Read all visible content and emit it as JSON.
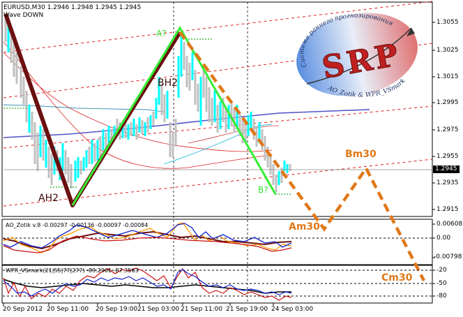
{
  "window": {
    "symbol_line": "EURUSD,M30  1.2946 1.2948 1.2945 1.2945",
    "indicator_name": "Wave DOWN"
  },
  "main_axis": {
    "ticks": [
      "1.3055",
      "1.3025",
      "1.3015",
      "1.2995",
      "1.2975",
      "1.2955",
      "1.2935",
      "1.2915"
    ],
    "current_price": "1.2945"
  },
  "wave_labels": {
    "ah2": "AH2",
    "bh2": "BH2",
    "a_q": "A?",
    "b_q": "B?",
    "am30": "Am30",
    "bm30": "Bm30",
    "cm30": "Cm30"
  },
  "logo": {
    "letters": "SRP",
    "ring_top_text": "Система раннего прогнозирования",
    "ring_bottom_text": "AO_Zotik & WPR_VSmark"
  },
  "ao_panel": {
    "title": "AO_Zotik v.8  -0.00297  -0.00136  -0.00097  -0.00084",
    "ticks": [
      "0.00608",
      "0.00",
      "-0.00798"
    ]
  },
  "wpr_panel": {
    "title": "WPR_VSmark(21|55|77|277)  -89.2961  -87.3563",
    "ticks": [
      "-20",
      "-50",
      "-80"
    ]
  },
  "time_axis": {
    "labels": [
      "20 Sep 2012",
      "20 Sep 11:00",
      "20 Sep 19:00",
      "21 Sep 03:00",
      "21 Sep 11:00",
      "21 Sep 19:00",
      "24 Sep 03:00"
    ]
  },
  "colors": {
    "bull_bar": "#00ffff",
    "bear_bar": "#c0c0c0",
    "wave_dark": "#6b1010",
    "wave_green": "#33ee33",
    "forecast_orange": "#e07818",
    "channel_red": "#dd2020",
    "ma_blue": "#5050c8",
    "label_orange": "#e07818"
  }
}
